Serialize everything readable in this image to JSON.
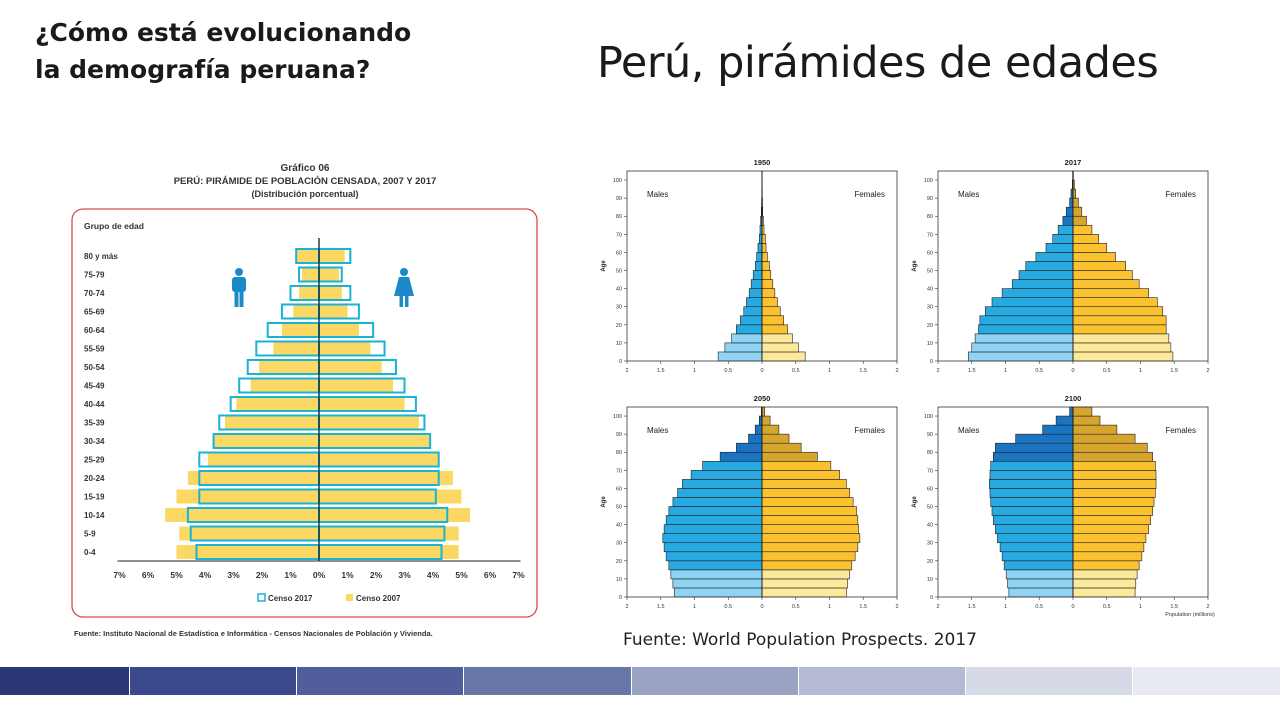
{
  "slide": {
    "subtitle_line1": "¿Cómo está evolucionando",
    "subtitle_line2": "la demografía peruana?",
    "title": "Perú, pirámides de edades",
    "source": "Fuente: World Population Prospects. 2017",
    "bottom_bar_colors": [
      "#2a3774",
      "#3a4a8c",
      "#505f9b",
      "#6876a8",
      "#9aa3c4",
      "#b4bad3",
      "#d6d9e6",
      "#e8eaf2"
    ]
  },
  "chart_data": [
    {
      "type": "bar",
      "title": "Gráfico 06",
      "subtitle": "PERÚ: PIRÁMIDE DE POBLACIÓN CENSADA, 2007 Y 2017",
      "subtitle2": "(Distribución porcentual)",
      "ylabel": "Grupo de edad",
      "source": "Fuente: Instituto Nacional de Estadística e Informática - Censos Nacionales de Población y Vivienda.",
      "categories": [
        "0-4",
        "5-9",
        "10-14",
        "15-19",
        "20-24",
        "25-29",
        "30-34",
        "35-39",
        "40-44",
        "45-49",
        "50-54",
        "55-59",
        "60-64",
        "65-69",
        "70-74",
        "75-79",
        "80 y más"
      ],
      "xlim": [
        -7,
        7
      ],
      "xticks": [
        "7%",
        "6%",
        "5%",
        "4%",
        "3%",
        "2%",
        "1%",
        "0%",
        "1%",
        "2%",
        "3%",
        "4%",
        "5%",
        "6%",
        "7%"
      ],
      "series": [
        {
          "name": "Censo 2007",
          "sex": "male",
          "values": [
            5.0,
            4.9,
            5.4,
            5.0,
            4.6,
            3.9,
            3.7,
            3.3,
            2.9,
            2.4,
            2.1,
            1.6,
            1.3,
            0.9,
            0.7,
            0.6,
            0.8
          ],
          "color": "#fbd864"
        },
        {
          "name": "Censo 2007",
          "sex": "female",
          "values": [
            4.9,
            4.9,
            5.3,
            5.0,
            4.7,
            4.2,
            3.9,
            3.5,
            3.0,
            2.6,
            2.2,
            1.8,
            1.4,
            1.0,
            0.8,
            0.7,
            0.9
          ],
          "color": "#fbd864"
        },
        {
          "name": "Censo 2017",
          "sex": "male",
          "values": [
            4.3,
            4.5,
            4.6,
            4.2,
            4.2,
            4.2,
            3.7,
            3.5,
            3.1,
            2.8,
            2.5,
            2.2,
            1.8,
            1.3,
            1.0,
            0.7,
            0.8
          ],
          "color": "#19b3d4"
        },
        {
          "name": "Censo 2017",
          "sex": "female",
          "values": [
            4.3,
            4.4,
            4.5,
            4.1,
            4.2,
            4.2,
            3.9,
            3.7,
            3.4,
            3.0,
            2.7,
            2.3,
            1.9,
            1.4,
            1.1,
            0.8,
            1.1
          ],
          "color": "#19b3d4"
        }
      ],
      "legend": [
        "Censo 2017",
        "Censo 2007"
      ],
      "legend_position": "bottom",
      "icons": [
        "male-icon",
        "female-icon"
      ]
    },
    {
      "type": "bar",
      "title": "1950",
      "xlabel": "",
      "ylabel": "Age",
      "age_ticks": [
        "0",
        "10",
        "20",
        "30",
        "40",
        "50",
        "60",
        "70",
        "80",
        "90",
        "100"
      ],
      "x_ticks": [
        "2",
        "1.5",
        "1",
        "0.5",
        "0",
        "0.5",
        "1",
        "1.5",
        "2"
      ],
      "xlim": [
        -2,
        2
      ],
      "legend": [
        "Males",
        "Females"
      ],
      "male": [
        0.65,
        0.55,
        0.45,
        0.38,
        0.32,
        0.27,
        0.23,
        0.19,
        0.16,
        0.13,
        0.1,
        0.08,
        0.06,
        0.04,
        0.03,
        0.02,
        0.01,
        0.006,
        0.003,
        0.002,
        0.001
      ],
      "female": [
        0.64,
        0.54,
        0.45,
        0.38,
        0.32,
        0.27,
        0.23,
        0.19,
        0.16,
        0.13,
        0.11,
        0.08,
        0.06,
        0.05,
        0.03,
        0.02,
        0.01,
        0.007,
        0.004,
        0.002,
        0.001
      ]
    },
    {
      "type": "bar",
      "title": "2017",
      "xlabel": "",
      "ylabel": "Age",
      "age_ticks": [
        "0",
        "10",
        "20",
        "30",
        "40",
        "50",
        "60",
        "70",
        "80",
        "90",
        "100"
      ],
      "x_ticks": [
        "2",
        "1.5",
        "1",
        "0.5",
        "0",
        "0.5",
        "1",
        "1.5",
        "2"
      ],
      "xlim": [
        -2,
        2
      ],
      "legend": [
        "Males",
        "Females"
      ],
      "male": [
        1.55,
        1.5,
        1.45,
        1.4,
        1.38,
        1.3,
        1.2,
        1.05,
        0.9,
        0.8,
        0.7,
        0.55,
        0.4,
        0.3,
        0.22,
        0.15,
        0.1,
        0.05,
        0.03,
        0.01,
        0.005
      ],
      "female": [
        1.48,
        1.45,
        1.42,
        1.38,
        1.38,
        1.33,
        1.25,
        1.12,
        0.98,
        0.88,
        0.78,
        0.63,
        0.5,
        0.38,
        0.28,
        0.2,
        0.13,
        0.08,
        0.04,
        0.02,
        0.005
      ]
    },
    {
      "type": "bar",
      "title": "2050",
      "xlabel": "",
      "ylabel": "Age",
      "age_ticks": [
        "0",
        "10",
        "20",
        "30",
        "40",
        "50",
        "60",
        "70",
        "80",
        "90",
        "100"
      ],
      "x_ticks": [
        "2",
        "1.5",
        "1",
        "0.5",
        "0",
        "0.5",
        "1",
        "1.5",
        "2"
      ],
      "xlim": [
        -2,
        2
      ],
      "legend": [
        "Males",
        "Females"
      ],
      "male": [
        1.3,
        1.32,
        1.35,
        1.38,
        1.42,
        1.45,
        1.47,
        1.45,
        1.42,
        1.38,
        1.32,
        1.25,
        1.18,
        1.05,
        0.88,
        0.62,
        0.38,
        0.2,
        0.1,
        0.04,
        0.01
      ],
      "female": [
        1.25,
        1.27,
        1.3,
        1.33,
        1.38,
        1.42,
        1.45,
        1.43,
        1.42,
        1.4,
        1.35,
        1.3,
        1.25,
        1.15,
        1.02,
        0.82,
        0.58,
        0.4,
        0.25,
        0.12,
        0.04
      ]
    },
    {
      "type": "bar",
      "title": "2100",
      "xlabel": "Population (millions)",
      "ylabel": "Age",
      "age_ticks": [
        "0",
        "10",
        "20",
        "30",
        "40",
        "50",
        "60",
        "70",
        "80",
        "90",
        "100"
      ],
      "x_ticks": [
        "2",
        "1.5",
        "1",
        "0.5",
        "0",
        "0.5",
        "1",
        "1.5",
        "2"
      ],
      "xlim": [
        -2,
        2
      ],
      "legend": [
        "Males",
        "Females"
      ],
      "male": [
        0.95,
        0.97,
        0.99,
        1.02,
        1.05,
        1.08,
        1.12,
        1.15,
        1.18,
        1.2,
        1.22,
        1.23,
        1.24,
        1.23,
        1.22,
        1.18,
        1.15,
        0.85,
        0.45,
        0.25,
        0.05
      ],
      "female": [
        0.92,
        0.93,
        0.95,
        0.98,
        1.02,
        1.05,
        1.08,
        1.12,
        1.15,
        1.18,
        1.2,
        1.22,
        1.23,
        1.23,
        1.22,
        1.18,
        1.1,
        0.92,
        0.65,
        0.4,
        0.28
      ]
    }
  ]
}
